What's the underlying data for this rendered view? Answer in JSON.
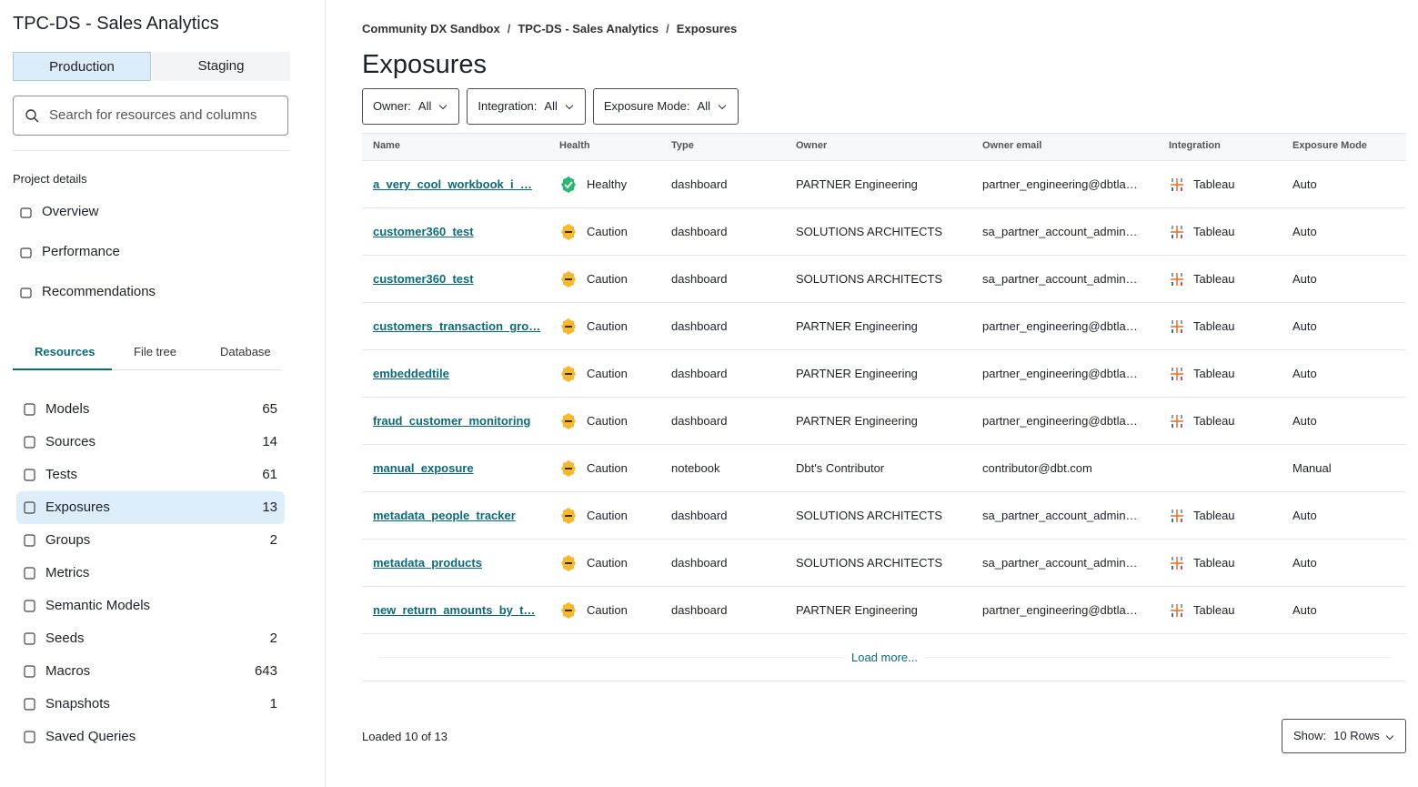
{
  "sidebar": {
    "project": "TPC-DS - Sales Analytics",
    "environments": [
      "Production",
      "Staging"
    ],
    "search_placeholder": "Search for resources and columns",
    "project_details": "Project details",
    "nav": [
      "Overview",
      "Performance",
      "Recommendations"
    ],
    "tabs": [
      "Resources",
      "File tree",
      "Database"
    ],
    "resources": [
      {
        "label": "Models",
        "count": 65
      },
      {
        "label": "Sources",
        "count": 14
      },
      {
        "label": "Tests",
        "count": 61
      },
      {
        "label": "Exposures",
        "count": 13
      },
      {
        "label": "Groups",
        "count": 2
      },
      {
        "label": "Metrics"
      },
      {
        "label": "Semantic Models"
      },
      {
        "label": "Seeds",
        "count": 2
      },
      {
        "label": "Macros",
        "count": 643
      },
      {
        "label": "Snapshots",
        "count": 1
      },
      {
        "label": "Saved Queries"
      }
    ]
  },
  "main": {
    "breadcrumbs": [
      "Community DX Sandbox",
      "TPC-DS - Sales Analytics",
      "Exposures"
    ],
    "breadcrumb_separator": "/",
    "title": "Exposures",
    "filters": [
      {
        "label": "Owner:",
        "value": "All"
      },
      {
        "label": "Integration:",
        "value": "All"
      },
      {
        "label": "Exposure Mode:",
        "value": "All"
      }
    ],
    "table": {
      "columns": [
        "Name",
        "Health",
        "Type",
        "Owner",
        "Owner email",
        "Integration",
        "Exposure Mode"
      ],
      "rows": [
        [
          "a_very_cool_workbook_i_…",
          "Healthy",
          "dashboard",
          "PARTNER Engineering",
          "partner_engineering@dbtla…",
          "Tableau",
          "Auto"
        ],
        [
          "customer360_test",
          "Caution",
          "dashboard",
          "SOLUTIONS ARCHITECTS",
          "sa_partner_account_admin…",
          "Tableau",
          "Auto"
        ],
        [
          "customer360_test",
          "Caution",
          "dashboard",
          "SOLUTIONS ARCHITECTS",
          "sa_partner_account_admin…",
          "Tableau",
          "Auto"
        ],
        [
          "customers_transaction_gro…",
          "Caution",
          "dashboard",
          "PARTNER Engineering",
          "partner_engineering@dbtla…",
          "Tableau",
          "Auto"
        ],
        [
          "embeddedtile",
          "Caution",
          "dashboard",
          "PARTNER Engineering",
          "partner_engineering@dbtla…",
          "Tableau",
          "Auto"
        ],
        [
          "fraud_customer_monitoring",
          "Caution",
          "dashboard",
          "PARTNER Engineering",
          "partner_engineering@dbtla…",
          "Tableau",
          "Auto"
        ],
        [
          "manual_exposure",
          "Caution",
          "notebook",
          "Dbt's Contributor",
          "contributor@dbt.com",
          null,
          "Manual"
        ],
        [
          "metadata_people_tracker",
          "Caution",
          "dashboard",
          "SOLUTIONS ARCHITECTS",
          "sa_partner_account_admin…",
          "Tableau",
          "Auto"
        ],
        [
          "metadata_products",
          "Caution",
          "dashboard",
          "SOLUTIONS ARCHITECTS",
          "sa_partner_account_admin…",
          "Tableau",
          "Auto"
        ],
        [
          "new_return_amounts_by_t…",
          "Caution",
          "dashboard",
          "PARTNER Engineering",
          "partner_engineering@dbtla…",
          "Tableau",
          "Auto"
        ]
      ]
    },
    "load_more": "Load more...",
    "loaded": "Loaded 10 of 13",
    "show": {
      "label": "Show:",
      "value": "10 Rows"
    }
  }
}
